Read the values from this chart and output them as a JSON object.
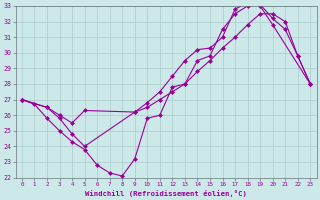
{
  "xlabel": "Windchill (Refroidissement éolien,°C)",
  "bg_color": "#cce8e8",
  "line_color": "#990099",
  "grid_color": "#aacccc",
  "xlim": [
    -0.5,
    23.5
  ],
  "ylim": [
    22,
    33
  ],
  "yticks": [
    22,
    23,
    24,
    25,
    26,
    27,
    28,
    29,
    30,
    31,
    32,
    33
  ],
  "xticks": [
    0,
    1,
    2,
    3,
    4,
    5,
    6,
    7,
    8,
    9,
    10,
    11,
    12,
    13,
    14,
    15,
    16,
    17,
    18,
    19,
    20,
    21,
    22,
    23
  ],
  "curve1_x": [
    0,
    1,
    2,
    3,
    4,
    5,
    6,
    7,
    8,
    9,
    10,
    11,
    12,
    13,
    14,
    15,
    16,
    17,
    18,
    19,
    20,
    21,
    22,
    23
  ],
  "curve1_y": [
    27.0,
    26.7,
    25.8,
    25.0,
    24.3,
    23.8,
    22.8,
    22.3,
    22.1,
    23.2,
    25.8,
    26.0,
    27.8,
    28.0,
    29.5,
    29.8,
    31.5,
    32.5,
    33.0,
    33.1,
    32.2,
    31.5,
    29.8,
    28.0
  ],
  "curve2_x": [
    0,
    2,
    3,
    4,
    5,
    9,
    10,
    11,
    12,
    13,
    14,
    15,
    16,
    17,
    18,
    19,
    20,
    21,
    22,
    23
  ],
  "curve2_y": [
    27.0,
    26.5,
    26.0,
    25.5,
    26.3,
    26.2,
    26.5,
    27.0,
    27.5,
    28.0,
    28.8,
    29.5,
    30.3,
    31.0,
    31.8,
    32.5,
    32.5,
    32.0,
    29.8,
    28.0
  ],
  "curve3_x": [
    0,
    2,
    3,
    4,
    5,
    9,
    10,
    11,
    12,
    13,
    14,
    15,
    16,
    17,
    18,
    19,
    20,
    23
  ],
  "curve3_y": [
    27.0,
    26.5,
    25.8,
    24.8,
    24.0,
    26.2,
    26.8,
    27.5,
    28.5,
    29.5,
    30.2,
    30.3,
    31.0,
    32.8,
    33.2,
    33.0,
    31.8,
    28.0
  ]
}
